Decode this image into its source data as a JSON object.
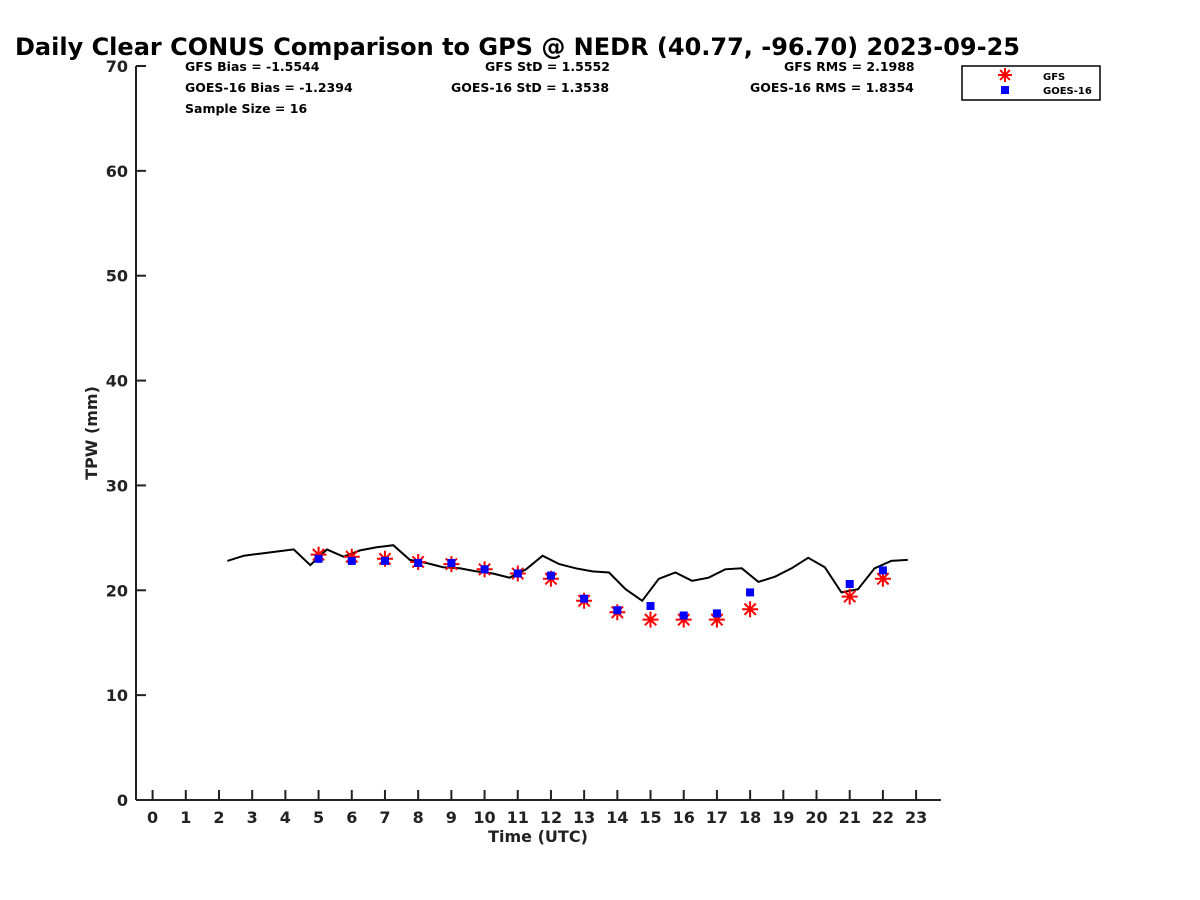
{
  "chart_data": {
    "type": "scatter",
    "title": "Daily Clear CONUS Comparison to GPS @ NEDR (40.77, -96.70) 2023-09-25",
    "xlabel": "Time (UTC)",
    "ylabel": "TPW (mm)",
    "xlim": [
      -0.5,
      23.75
    ],
    "ylim": [
      0,
      70
    ],
    "x_ticks": [
      0,
      1,
      2,
      3,
      4,
      5,
      6,
      7,
      8,
      9,
      10,
      11,
      12,
      13,
      14,
      15,
      16,
      17,
      18,
      19,
      20,
      21,
      22,
      23
    ],
    "y_ticks": [
      0,
      10,
      20,
      30,
      40,
      50,
      60,
      70
    ],
    "grid": false,
    "legend_position": "top-right",
    "stats": {
      "gfs_bias": "GFS Bias = -1.5544",
      "gfs_std": "GFS StD = 1.5552",
      "gfs_rms": "GFS RMS = 2.1988",
      "goes_bias": "GOES-16 Bias = -1.2394",
      "goes_std": "GOES-16 StD = 1.3538",
      "goes_rms": "GOES-16 RMS = 1.8354",
      "sample_size": "Sample Size = 16"
    },
    "series": [
      {
        "name": "GFS",
        "marker": "asterisk",
        "color": "#ff0000",
        "x": [
          5,
          6,
          7,
          8,
          9,
          10,
          11,
          12,
          13,
          14,
          15,
          16,
          17,
          18,
          21,
          22
        ],
        "y": [
          23.4,
          23.2,
          23.0,
          22.7,
          22.5,
          22.0,
          21.6,
          21.1,
          19.0,
          17.9,
          17.2,
          17.2,
          17.2,
          18.2,
          19.4,
          21.1
        ]
      },
      {
        "name": "GOES-16",
        "marker": "square",
        "color": "#0000ff",
        "x": [
          5,
          6,
          7,
          8,
          9,
          10,
          11,
          12,
          13,
          14,
          15,
          16,
          17,
          18,
          21,
          22
        ],
        "y": [
          23.0,
          22.8,
          22.8,
          22.6,
          22.6,
          22.0,
          21.6,
          21.4,
          19.2,
          18.1,
          18.5,
          17.6,
          17.8,
          19.8,
          20.6,
          21.9
        ]
      },
      {
        "marker": "line",
        "color": "#000000",
        "x": [
          2.25,
          2.75,
          3.25,
          3.75,
          4.25,
          4.75,
          5.25,
          5.75,
          6.25,
          6.75,
          7.25,
          7.75,
          8.25,
          8.75,
          9.25,
          9.75,
          10.25,
          10.75,
          11.25,
          11.75,
          12.25,
          12.75,
          13.25,
          13.75,
          14.25,
          14.75,
          15.25,
          15.75,
          16.25,
          16.75,
          17.25,
          17.75,
          18.25,
          18.75,
          19.25,
          19.75,
          20.25,
          20.75,
          21.25,
          21.75,
          22.25,
          22.75
        ],
        "y": [
          22.8,
          23.3,
          23.5,
          23.7,
          23.9,
          22.4,
          23.9,
          23.2,
          23.8,
          24.1,
          24.3,
          22.9,
          22.6,
          22.2,
          22.1,
          21.8,
          21.6,
          21.2,
          22.0,
          23.3,
          22.5,
          22.1,
          21.8,
          21.7,
          20.1,
          19.0,
          21.1,
          21.7,
          20.9,
          21.2,
          22.0,
          22.1,
          20.8,
          21.3,
          22.1,
          23.1,
          22.2,
          19.8,
          20.1,
          22.1,
          22.8,
          22.9
        ]
      }
    ]
  }
}
